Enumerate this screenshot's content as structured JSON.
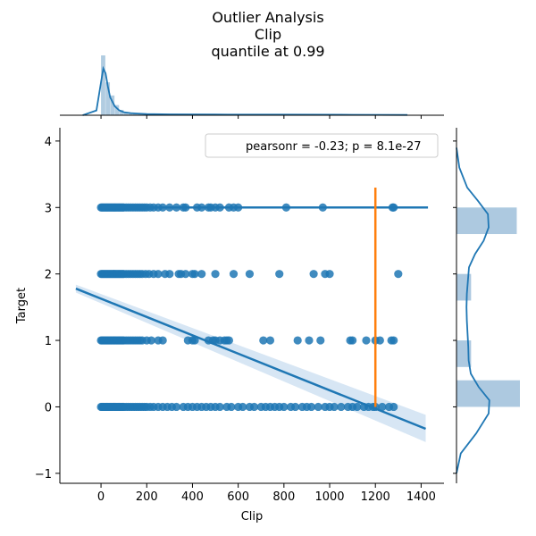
{
  "chart_data": {
    "type": "scatter",
    "title_lines": [
      "Outlier Analysis",
      "Clip",
      "quantile at 0.99"
    ],
    "xlabel": "Clip",
    "ylabel": "Target",
    "xlim": [
      -180,
      1500
    ],
    "ylim": [
      -1.15,
      4.2
    ],
    "x_ticks": [
      0,
      200,
      400,
      600,
      800,
      1000,
      1200,
      1400
    ],
    "y_ticks": [
      -1,
      0,
      1,
      2,
      3,
      4
    ],
    "legend": {
      "text": "pearsonr = -0.23; p = 8.1e-27",
      "position": "top-right"
    },
    "colors": {
      "points": "#1f77b4",
      "regression": "#1f77b4",
      "ci_band": "#c6dbef",
      "quantile_line": "#ff7f0e",
      "marginal_bars": "#a9c6de"
    },
    "scatter": [
      {
        "y": 3,
        "x": [
          0,
          5,
          10,
          15,
          20,
          25,
          30,
          35,
          40,
          45,
          50,
          55,
          60,
          65,
          70,
          75,
          80,
          85,
          90,
          95,
          100,
          110,
          120,
          130,
          140,
          150,
          160,
          170,
          180,
          190,
          200,
          215,
          230,
          250,
          270,
          300,
          330,
          360,
          370,
          420,
          440,
          470,
          480,
          500,
          520,
          560,
          580,
          600,
          810,
          970,
          1275,
          1280
        ]
      },
      {
        "y": 2,
        "x": [
          0,
          5,
          10,
          15,
          20,
          25,
          30,
          35,
          40,
          45,
          50,
          55,
          60,
          65,
          70,
          75,
          80,
          85,
          90,
          95,
          100,
          110,
          120,
          130,
          140,
          150,
          160,
          170,
          180,
          195,
          210,
          230,
          250,
          280,
          300,
          340,
          350,
          370,
          400,
          410,
          440,
          500,
          580,
          650,
          780,
          930,
          980,
          1000,
          1300
        ]
      },
      {
        "y": 1,
        "x": [
          0,
          5,
          10,
          15,
          20,
          25,
          30,
          35,
          40,
          45,
          50,
          55,
          60,
          65,
          70,
          75,
          80,
          85,
          90,
          95,
          100,
          110,
          120,
          130,
          140,
          150,
          160,
          170,
          180,
          200,
          220,
          250,
          270,
          380,
          400,
          410,
          470,
          490,
          500,
          520,
          540,
          550,
          560,
          710,
          740,
          860,
          910,
          960,
          1090,
          1100,
          1160,
          1200,
          1220,
          1270,
          1280
        ]
      },
      {
        "y": 0,
        "x": [
          0,
          5,
          10,
          15,
          20,
          25,
          30,
          35,
          40,
          45,
          50,
          55,
          60,
          65,
          70,
          75,
          80,
          85,
          90,
          95,
          100,
          110,
          120,
          130,
          140,
          150,
          160,
          170,
          180,
          190,
          200,
          215,
          230,
          250,
          270,
          290,
          310,
          330,
          360,
          380,
          400,
          420,
          440,
          460,
          480,
          500,
          520,
          550,
          570,
          600,
          620,
          650,
          670,
          700,
          720,
          740,
          760,
          780,
          800,
          830,
          850,
          880,
          900,
          920,
          950,
          980,
          1000,
          1020,
          1050,
          1080,
          1100,
          1120,
          1150,
          1170,
          1190,
          1200,
          1230,
          1260,
          1280
        ]
      }
    ],
    "regression": {
      "x": [
        -110,
        1420
      ],
      "y": [
        1.78,
        -0.33
      ],
      "ci_upper": [
        1.84,
        -0.12
      ],
      "ci_lower": [
        1.72,
        -0.53
      ]
    },
    "hlines": [
      {
        "y": 3.0,
        "x": [
          0,
          1430
        ]
      }
    ],
    "quantile_line": {
      "x": 1200,
      "y": [
        0,
        3.3
      ]
    },
    "marginal_x": {
      "bins": [
        0,
        20,
        40,
        60,
        80,
        100,
        120,
        140,
        160,
        180,
        200,
        300,
        400,
        600,
        800,
        1000,
        1200,
        1300
      ],
      "heights": [
        1.0,
        0.55,
        0.33,
        0.17,
        0.09,
        0.05,
        0.035,
        0.025,
        0.02,
        0.015,
        0.02,
        0.012,
        0.01,
        0.008,
        0.006,
        0.005,
        0.004
      ],
      "kde_x": [
        -80,
        -20,
        0,
        10,
        20,
        30,
        40,
        60,
        80,
        100,
        130,
        160,
        200,
        300,
        500,
        800,
        1100,
        1340
      ],
      "kde_y": [
        0.0,
        0.08,
        0.55,
        0.78,
        0.7,
        0.48,
        0.3,
        0.15,
        0.08,
        0.05,
        0.035,
        0.028,
        0.02,
        0.015,
        0.012,
        0.01,
        0.008,
        0.005
      ]
    },
    "marginal_y": {
      "bars": [
        {
          "y0": 2.6,
          "y1": 3.0,
          "value": 0.95
        },
        {
          "y0": 1.6,
          "y1": 2.0,
          "value": 0.23
        },
        {
          "y0": 0.6,
          "y1": 1.0,
          "value": 0.23
        },
        {
          "y0": 0.0,
          "y1": 0.4,
          "value": 1.0
        }
      ],
      "kde_y": [
        -1.0,
        -0.7,
        -0.4,
        -0.1,
        0.1,
        0.3,
        0.5,
        0.7,
        0.9,
        1.1,
        1.3,
        1.5,
        1.7,
        1.9,
        2.1,
        2.3,
        2.5,
        2.7,
        2.9,
        3.1,
        3.3,
        3.6,
        3.9
      ],
      "kde_x": [
        0.0,
        0.12,
        0.55,
        0.9,
        0.92,
        0.62,
        0.4,
        0.34,
        0.33,
        0.31,
        0.29,
        0.28,
        0.29,
        0.32,
        0.35,
        0.52,
        0.76,
        0.9,
        0.88,
        0.6,
        0.3,
        0.08,
        0.0
      ]
    }
  }
}
